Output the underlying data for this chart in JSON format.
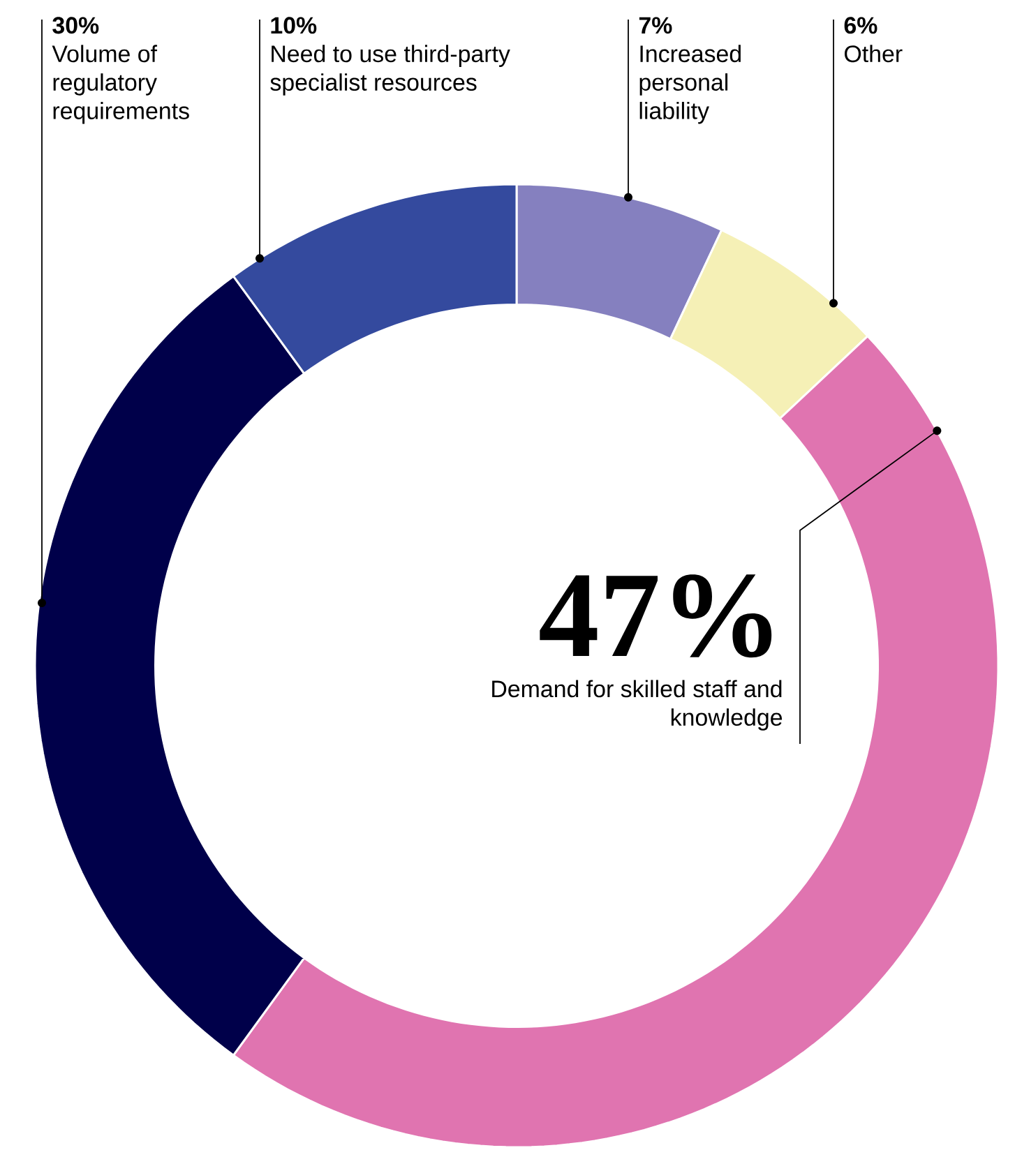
{
  "chart_data": {
    "type": "donut",
    "categories": [
      "Increased personal liability",
      "Other",
      "Demand for skilled staff and knowledge",
      "Volume of regulatory requirements",
      "Need to use third-party specialist resources"
    ],
    "values": [
      7,
      6,
      47,
      30,
      10
    ],
    "value_labels": [
      "7%",
      "6%",
      "47%",
      "30%",
      "10%"
    ],
    "colors": [
      "#8580bf",
      "#f5f0b6",
      "#e074b0",
      "#00004a",
      "#344a9e"
    ]
  }
}
